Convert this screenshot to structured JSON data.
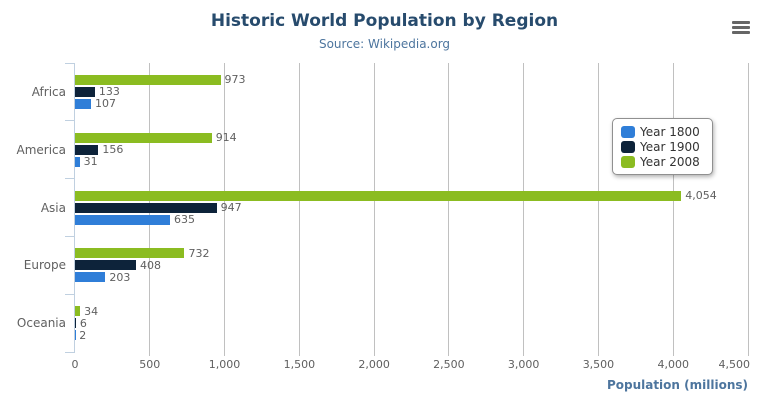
{
  "chart": {
    "title": "Historic World Population by Region",
    "subtitle": "Source: Wikipedia.org"
  },
  "x_axis": {
    "title": "Population (millions)",
    "tick_labels": [
      "0",
      "500",
      "1,000",
      "1,500",
      "2,000",
      "2,500",
      "3,000",
      "3,500",
      "4,000",
      "4,500"
    ]
  },
  "chart_data": {
    "type": "bar",
    "orientation": "horizontal",
    "title": "Historic World Population by Region",
    "subtitle": "Source: Wikipedia.org",
    "xlabel": "Population (millions)",
    "ylabel": "",
    "categories": [
      "Africa",
      "America",
      "Asia",
      "Europe",
      "Oceania"
    ],
    "series": [
      {
        "name": "Year 1800",
        "color": "#2f7ed8",
        "values": [
          107,
          31,
          635,
          203,
          2
        ]
      },
      {
        "name": "Year 1900",
        "color": "#0d233a",
        "values": [
          133,
          156,
          947,
          408,
          6
        ]
      },
      {
        "name": "Year 2008",
        "color": "#8bbc21",
        "values": [
          973,
          914,
          4054,
          732,
          34
        ]
      }
    ],
    "render_order_top_to_bottom": [
      "Year 2008",
      "Year 1900",
      "Year 1800"
    ],
    "xlim": [
      0,
      4500
    ],
    "x_tick_step": 500,
    "grid": "vertical-gridlines-only",
    "legend_position": "floating-right",
    "data_labels": "outside-end-thousands-separated"
  },
  "legend": {
    "items": [
      {
        "label": "Year 1800",
        "color": "#2f7ed8"
      },
      {
        "label": "Year 1900",
        "color": "#0d233a"
      },
      {
        "label": "Year 2008",
        "color": "#8bbc21"
      }
    ]
  },
  "colors": {
    "title": "#274b6d",
    "subtitle": "#4d759e",
    "axis_title": "#4d759e",
    "labels": "#606060",
    "gridline": "#c0c0c0",
    "category_axis_line": "#c0d0e0",
    "legend_border": "#909090",
    "menu_icon": "#666666",
    "background": "#ffffff"
  }
}
